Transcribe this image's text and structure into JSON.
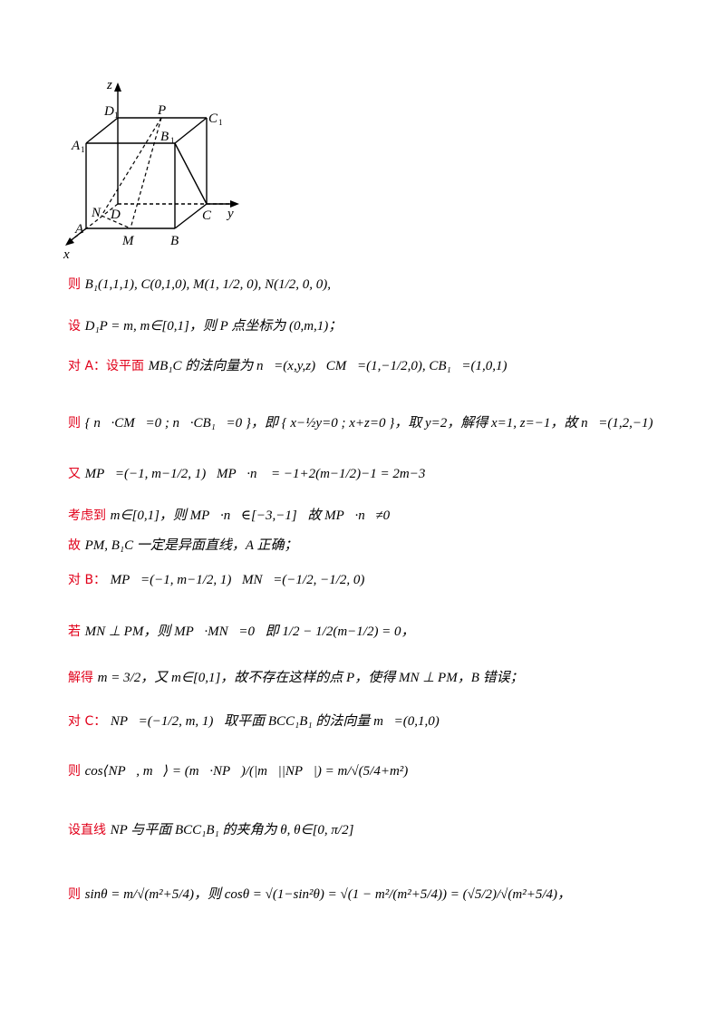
{
  "figure": {
    "axis_labels": {
      "z": "z",
      "y": "y",
      "x": "x"
    },
    "points": {
      "D1": "D",
      "P": "P",
      "C1": "C",
      "A1": "A",
      "B1": "B",
      "N": "N",
      "D": "D",
      "A": "A",
      "C": "C",
      "M": "M",
      "B": "B"
    },
    "subscripts": {
      "D1": "1",
      "C1": "1",
      "A1": "1",
      "B1": "1"
    }
  },
  "lines": [
    {
      "cn_text": "则",
      "math": "B₁(1,1,1), C(0,1,0), M(1, 1/2, 0), N(1/2, 0, 0),"
    },
    {
      "cn_text": "设",
      "math": "D₁P = m, m∈[0,1]，则 P 点坐标为 (0,m,1)；"
    },
    {
      "cn_text": "对 A：设平面",
      "math": "MB₁C 的法向量为 n⃗=(x,y,z)，CM⃗=(1,−1/2,0), CB₁⃗=(1,0,1)，"
    },
    {
      "cn_text": "则",
      "math": "{ n⃗·CM⃗=0 ; n⃗·CB₁⃗=0 }，即 { x−½y=0 ; x+z=0 }，取 y=2，解得 x=1, z=−1，故 n⃗=(1,2,−1)；"
    },
    {
      "cn_text": "又",
      "math": "MP⃗=(−1, m−1/2, 1)，MP⃗·n⃗ = −1+2(m−1/2)−1 = 2m−3，"
    },
    {
      "cn_text": "考虑到",
      "math": "m∈[0,1]，则 MP⃗·n⃗∈[−3,−1]，故 MP⃗·n⃗≠0，"
    },
    {
      "cn_text": "故",
      "math": "PM, B₁C 一定是异面直线，A 正确；"
    },
    {
      "cn_text": "对 B：",
      "math": "MP⃗=(−1, m−1/2, 1)，MN⃗=(−1/2, −1/2, 0)，"
    },
    {
      "cn_text": "若",
      "math": "MN ⊥ PM，则 MP⃗·MN⃗=0，即 1/2 − 1/2(m−1/2) = 0，"
    },
    {
      "cn_text": "解得",
      "math": "m = 3/2，又 m∈[0,1]，故不存在这样的点 P，使得 MN ⊥ PM，B 错误；"
    },
    {
      "cn_text": "对 C：",
      "math": "NP⃗=(−1/2, m, 1)，取平面 BCC₁B₁ 的法向量 m⃗=(0,1,0)，"
    },
    {
      "cn_text": "则",
      "math": "cos⟨NP⃗, m⃗⟩ = (m⃗·NP⃗)/(|m⃗||NP⃗|) = m/√(5/4+m²)，"
    },
    {
      "cn_text": "设直线",
      "math": "NP 与平面 BCC₁B₁ 的夹角为 θ, θ∈[0, π/2]"
    },
    {
      "cn_text": "则",
      "math": "sinθ = m/√(m²+5/4)，则 cosθ = √(1−sin²θ) = √(1 − m²/(m²+5/4)) = (√5/2)/√(m²+5/4)，"
    }
  ]
}
